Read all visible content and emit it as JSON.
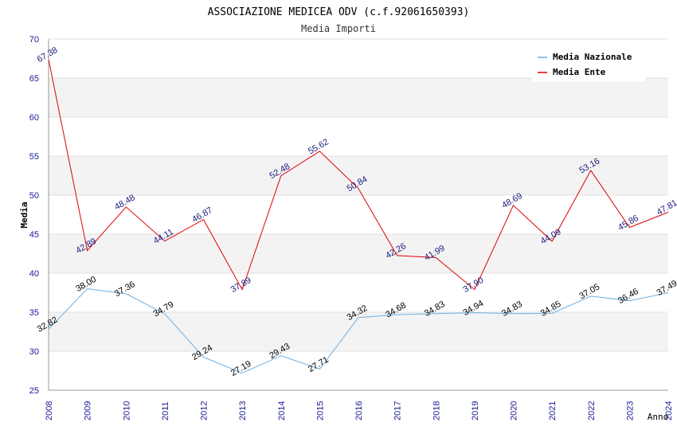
{
  "chart_data": {
    "type": "line",
    "title": "ASSOCIAZIONE MEDICEA ODV (c.f.92061650393)",
    "subtitle": "Media Importi",
    "xlabel": "Anno",
    "ylabel": "Media",
    "ylim": [
      25,
      70
    ],
    "yticks": [
      25,
      30,
      35,
      40,
      45,
      50,
      55,
      60,
      65,
      70
    ],
    "categories": [
      "2008",
      "2009",
      "2010",
      "2011",
      "2012",
      "2013",
      "2014",
      "2015",
      "2016",
      "2017",
      "2018",
      "2019",
      "2020",
      "2021",
      "2022",
      "2023",
      "2024"
    ],
    "legend_position": "top-right",
    "grid": "horizontal alternating bands",
    "series": [
      {
        "name": "Media Nazionale",
        "color": "#6aaee0",
        "values": [
          32.82,
          38.0,
          37.36,
          34.79,
          29.24,
          27.19,
          29.43,
          27.71,
          34.32,
          34.68,
          34.83,
          34.94,
          34.83,
          34.85,
          37.05,
          36.46,
          37.49
        ],
        "labels": [
          "32.82",
          "38.00",
          "37.36",
          "34.79",
          "29.24",
          "27.19",
          "29.43",
          "27.71",
          "34.32",
          "34.68",
          "34.83",
          "34.94",
          "34.83",
          "34.85",
          "37.05",
          "36.46",
          "37.49"
        ]
      },
      {
        "name": "Media Ente",
        "color": "#dd0000",
        "values": [
          67.38,
          42.89,
          48.48,
          44.11,
          46.87,
          37.89,
          52.48,
          55.62,
          50.84,
          42.26,
          41.99,
          37.9,
          48.69,
          44.09,
          53.16,
          45.86,
          47.81
        ],
        "labels": [
          "67.38",
          "42.89",
          "48.48",
          "44.11",
          "46.87",
          "37.89",
          "52.48",
          "55.62",
          "50.84",
          "42.26",
          "41.99",
          "37.90",
          "48.69",
          "44.09",
          "53.16",
          "45.86",
          "47.81"
        ]
      }
    ]
  }
}
